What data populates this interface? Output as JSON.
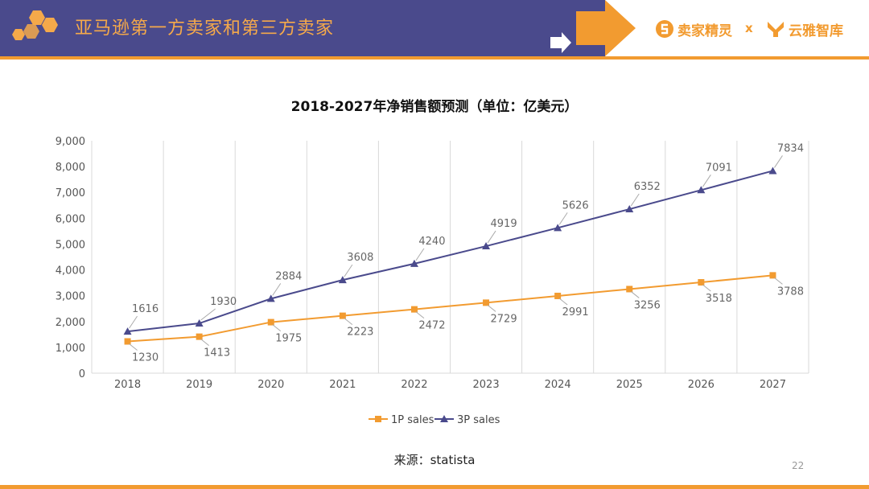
{
  "header": {
    "title": "亚马逊第一方卖家和第三方卖家",
    "brand_left": "卖家精灵",
    "brand_separator": "x",
    "brand_right": "云雅智库"
  },
  "chart_title": "2018-2027年净销售额预测（单位：亿美元）",
  "source": "来源：statista",
  "page_number": "22",
  "colors": {
    "header_band": "#4a4a8c",
    "accent_orange": "#f29b30",
    "series_1p": "#f29b30",
    "series_3p": "#4a4a8c"
  },
  "chart_data": {
    "type": "line",
    "title": "2018-2027年净销售额预测（单位：亿美元）",
    "categories": [
      "2018",
      "2019",
      "2020",
      "2021",
      "2022",
      "2023",
      "2024",
      "2025",
      "2026",
      "2027"
    ],
    "ylim": [
      0,
      9000
    ],
    "yticks": [
      0,
      1000,
      2000,
      3000,
      4000,
      5000,
      6000,
      7000,
      8000,
      9000
    ],
    "ytick_labels": [
      "0",
      "1,000",
      "2,000",
      "3,000",
      "4,000",
      "5,000",
      "6,000",
      "7,000",
      "8,000",
      "9,000"
    ],
    "grid": "vertical",
    "legend": "bottom",
    "series": [
      {
        "name": "1P sales",
        "marker": "square",
        "color": "#f29b30",
        "values": [
          1230,
          1413,
          1975,
          2223,
          2472,
          2729,
          2991,
          3256,
          3518,
          3788
        ]
      },
      {
        "name": "3P sales",
        "marker": "triangle",
        "color": "#4a4a8c",
        "values": [
          1616,
          1930,
          2884,
          3608,
          4240,
          4919,
          5626,
          6352,
          7091,
          7834
        ]
      }
    ]
  }
}
